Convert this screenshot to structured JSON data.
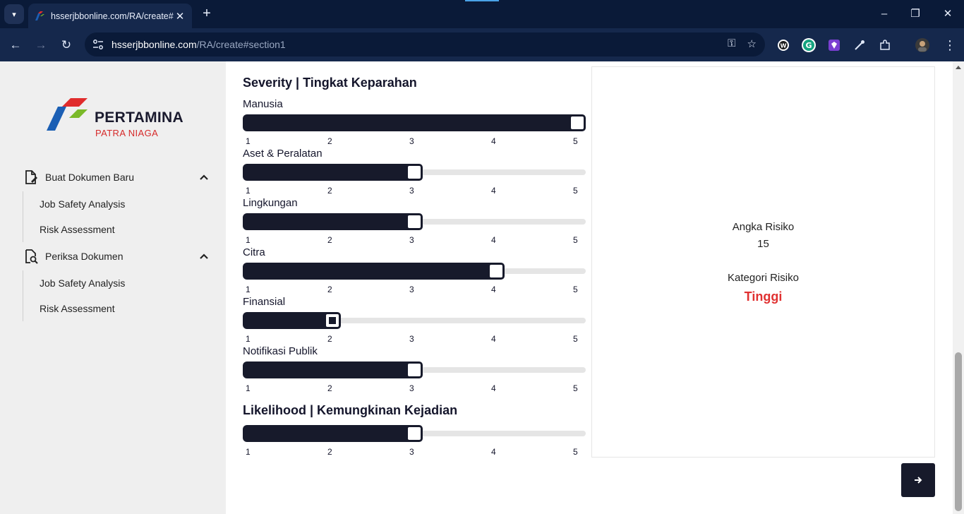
{
  "browser": {
    "tab_title": "hsserjbbonline.com/RA/create#",
    "url_host": "hsserjbbonline.com",
    "url_path": "/RA/create#section1"
  },
  "sidebar": {
    "logo_text": "PERTAMINA",
    "logo_sub": "PATRA NIAGA",
    "groups": [
      {
        "label": "Buat Dokumen Baru",
        "items": [
          "Job Safety Analysis",
          "Risk Assessment"
        ]
      },
      {
        "label": "Periksa Dokumen",
        "items": [
          "Job Safety Analysis",
          "Risk Assessment"
        ]
      }
    ]
  },
  "severity": {
    "title": "Severity | Tingkat Keparahan",
    "sliders": [
      {
        "label": "Manusia",
        "value": 5
      },
      {
        "label": "Aset & Peralatan",
        "value": 3
      },
      {
        "label": "Lingkungan",
        "value": 3
      },
      {
        "label": "Citra",
        "value": 4
      },
      {
        "label": "Finansial",
        "value": 2
      },
      {
        "label": "Notifikasi Publik",
        "value": 3
      }
    ]
  },
  "likelihood": {
    "title": "Likelihood | Kemungkinan Kejadian",
    "value": 3
  },
  "scale": {
    "ticks": [
      "1",
      "2",
      "3",
      "4",
      "5"
    ],
    "min": 1,
    "max": 5
  },
  "result": {
    "score_label": "Angka Risiko",
    "score_value": "15",
    "category_label": "Kategori Risiko",
    "category_value": "Tinggi",
    "category_color": "#e03131"
  },
  "colors": {
    "accent": "#171a2b",
    "chrome": "#0a1a38"
  }
}
